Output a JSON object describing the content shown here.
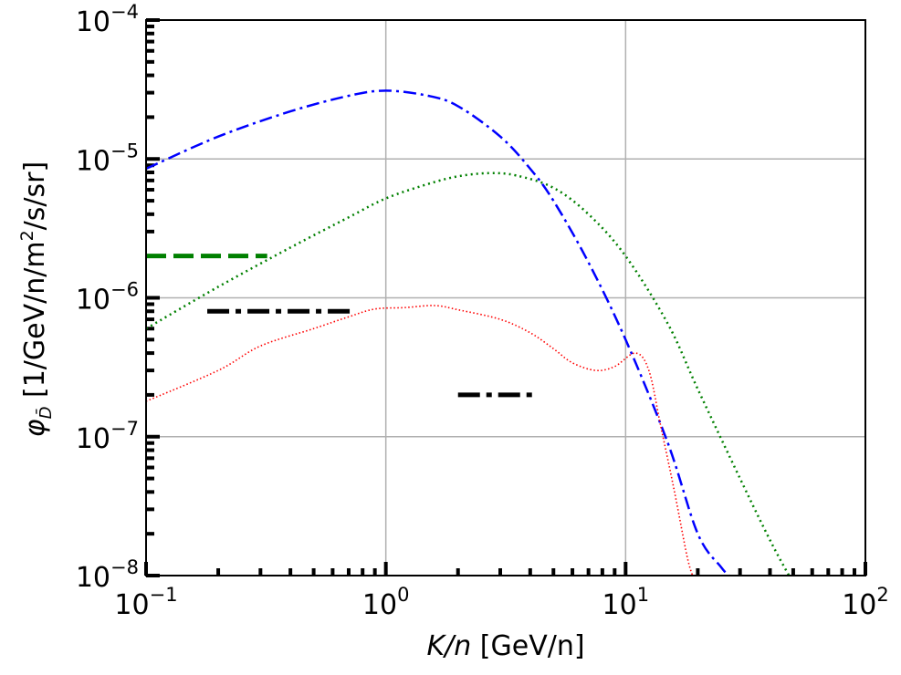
{
  "chart_data": {
    "type": "line",
    "xscale": "log",
    "yscale": "log",
    "xlim": [
      0.1,
      100
    ],
    "ylim": [
      1e-08,
      0.0001
    ],
    "grid": true,
    "xlabel": {
      "italic": "K/n",
      "rest": " [GeV/n]"
    },
    "ylabel": {
      "symbol": "φ",
      "subscript": "D̄",
      "rest": " [1/GeV/n/m",
      "sup": "2",
      "tail": "/s/sr]"
    },
    "x_ticks": [
      {
        "value": 0.1,
        "base": "10",
        "exp": "−1"
      },
      {
        "value": 1,
        "base": "10",
        "exp": "0"
      },
      {
        "value": 10,
        "base": "10",
        "exp": "1"
      },
      {
        "value": 100,
        "base": "10",
        "exp": "2"
      }
    ],
    "y_ticks": [
      {
        "value": 1e-08,
        "base": "10",
        "exp": "−8"
      },
      {
        "value": 1e-07,
        "base": "10",
        "exp": "−7"
      },
      {
        "value": 1e-06,
        "base": "10",
        "exp": "−6"
      },
      {
        "value": 1e-05,
        "base": "10",
        "exp": "−5"
      },
      {
        "value": 0.0001,
        "base": "10",
        "exp": "−4"
      }
    ],
    "series": [
      {
        "style": "dashdot",
        "color": "#0000ff",
        "x": [
          0.1,
          0.2,
          0.4,
          0.7,
          1.0,
          1.5,
          2.0,
          3.0,
          4.0,
          5.0,
          7.0,
          10.0,
          15.0,
          20.0,
          25.0,
          27.0
        ],
        "y": [
          8.5e-06,
          1.45e-05,
          2.2e-05,
          2.85e-05,
          3.1e-05,
          2.85e-05,
          2.4e-05,
          1.45e-05,
          8.5e-06,
          5e-06,
          1.8e-06,
          5e-07,
          9e-08,
          2e-08,
          1.15e-08,
          1e-08
        ]
      },
      {
        "style": "dotted",
        "color": "#008000",
        "x": [
          0.1,
          0.2,
          0.4,
          0.7,
          1.0,
          1.5,
          2.0,
          2.7,
          3.5,
          5.0,
          7.0,
          10.0,
          15.0,
          20.0,
          30.0,
          40.0,
          48.0
        ],
        "y": [
          6e-07,
          1.2e-06,
          2.3e-06,
          3.8e-06,
          5.2e-06,
          6.6e-06,
          7.5e-06,
          7.9e-06,
          7.6e-06,
          6.2e-06,
          4e-06,
          2e-06,
          6.5e-07,
          2.2e-07,
          5e-08,
          1.8e-08,
          1e-08
        ]
      },
      {
        "style": "dotted-thin",
        "color": "#ff0000",
        "x": [
          0.1,
          0.2,
          0.3,
          0.5,
          0.7,
          0.9,
          1.2,
          1.6,
          2.0,
          3.0,
          4.0,
          5.0,
          6.0,
          7.5,
          9.0,
          11.0,
          12.5,
          14.0,
          16.0,
          18.0,
          19.0
        ],
        "y": [
          1.8e-07,
          3e-07,
          4.5e-07,
          6e-07,
          7.3e-07,
          8.3e-07,
          8.5e-07,
          8.8e-07,
          8.2e-07,
          7e-07,
          5.6e-07,
          4.3e-07,
          3.4e-07,
          3e-07,
          3.2e-07,
          4e-07,
          3e-07,
          1.2e-07,
          4e-08,
          1.4e-08,
          1e-08
        ]
      }
    ],
    "segments": [
      {
        "style": "dashed",
        "color": "#008000",
        "x": [
          0.1,
          0.32
        ],
        "y": 2e-06
      },
      {
        "style": "dashdot",
        "color": "#000000",
        "x": [
          0.18,
          0.72
        ],
        "y": 8e-07
      },
      {
        "style": "dashdot",
        "color": "#000000",
        "x": [
          2.0,
          4.2
        ],
        "y": 2e-07
      }
    ]
  }
}
